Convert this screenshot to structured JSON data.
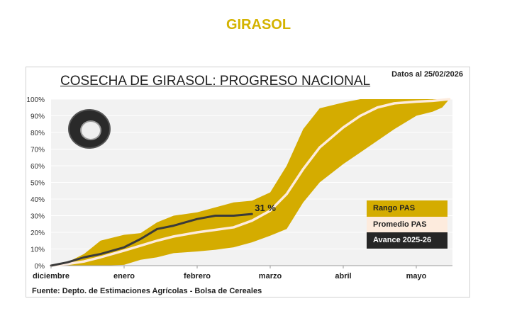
{
  "header": {
    "title": "GIRASOL"
  },
  "chart_data": {
    "type": "area",
    "title": "COSECHA DE GIRASOL: PROGRESO NACIONAL",
    "date_note": "Datos al 25/02/2026",
    "source": "Fuente: Depto. de Estimaciones Agrícolas - Bolsa de Cereales",
    "x_ticks": [
      "diciembre",
      "enero",
      "febrero",
      "marzo",
      "abril",
      "mayo"
    ],
    "y_ticks": [
      "0%",
      "10%",
      "20%",
      "30%",
      "40%",
      "50%",
      "60%",
      "70%",
      "80%",
      "90%",
      "100%"
    ],
    "ylim": [
      0,
      100
    ],
    "grid": true,
    "legend_placement": "bottom-right",
    "colors": {
      "range": "#D4AC00",
      "average": "#FDEBDD",
      "advance": "#3a3a3a",
      "plot_bg": "#F2F2F2"
    },
    "series": [
      {
        "name": "Rango PAS",
        "kind": "band",
        "upper": [
          [
            "2025-12-01",
            0
          ],
          [
            "2025-12-08",
            2
          ],
          [
            "2025-12-15",
            7
          ],
          [
            "2025-12-22",
            15
          ],
          [
            "2026-01-01",
            18.5
          ],
          [
            "2026-01-08",
            19.5
          ],
          [
            "2026-01-15",
            26
          ],
          [
            "2026-01-22",
            30
          ],
          [
            "2026-02-01",
            32
          ],
          [
            "2026-02-08",
            35
          ],
          [
            "2026-02-15",
            38
          ],
          [
            "2026-02-22",
            39
          ],
          [
            "2026-03-01",
            44
          ],
          [
            "2026-03-08",
            60
          ],
          [
            "2026-03-15",
            82
          ],
          [
            "2026-03-22",
            94.5
          ],
          [
            "2026-04-01",
            98
          ],
          [
            "2026-04-08",
            100
          ],
          [
            "2026-05-15",
            100
          ]
        ],
        "lower": [
          [
            "2025-12-01",
            0
          ],
          [
            "2025-12-22",
            0
          ],
          [
            "2026-01-01",
            0.5
          ],
          [
            "2026-01-08",
            3.5
          ],
          [
            "2026-01-15",
            5
          ],
          [
            "2026-01-22",
            7.5
          ],
          [
            "2026-02-01",
            8.5
          ],
          [
            "2026-02-08",
            9.5
          ],
          [
            "2026-02-15",
            11
          ],
          [
            "2026-02-22",
            14
          ],
          [
            "2026-03-01",
            18
          ],
          [
            "2026-03-08",
            22
          ],
          [
            "2026-03-15",
            38
          ],
          [
            "2026-03-22",
            50
          ],
          [
            "2026-04-01",
            61
          ],
          [
            "2026-04-08",
            68
          ],
          [
            "2026-04-15",
            75
          ],
          [
            "2026-04-22",
            82
          ],
          [
            "2026-05-01",
            90
          ],
          [
            "2026-05-08",
            92.5
          ],
          [
            "2026-05-12",
            95
          ],
          [
            "2026-05-15",
            100
          ]
        ]
      },
      {
        "name": "Promedio PAS",
        "kind": "line",
        "points": [
          [
            "2025-12-01",
            0
          ],
          [
            "2025-12-08",
            1
          ],
          [
            "2025-12-15",
            2.5
          ],
          [
            "2025-12-22",
            5
          ],
          [
            "2026-01-01",
            9
          ],
          [
            "2026-01-08",
            12
          ],
          [
            "2026-01-15",
            15
          ],
          [
            "2026-01-22",
            17.5
          ],
          [
            "2026-02-01",
            20
          ],
          [
            "2026-02-08",
            21.5
          ],
          [
            "2026-02-15",
            23
          ],
          [
            "2026-02-22",
            27
          ],
          [
            "2026-03-01",
            33
          ],
          [
            "2026-03-08",
            43
          ],
          [
            "2026-03-15",
            58
          ],
          [
            "2026-03-22",
            71
          ],
          [
            "2026-04-01",
            83
          ],
          [
            "2026-04-08",
            90
          ],
          [
            "2026-04-15",
            95
          ],
          [
            "2026-04-22",
            97.5
          ],
          [
            "2026-05-01",
            98.5
          ],
          [
            "2026-05-08",
            99
          ],
          [
            "2026-05-15",
            100
          ]
        ]
      },
      {
        "name": "Avance 2025-26",
        "kind": "line",
        "points": [
          [
            "2025-12-01",
            0
          ],
          [
            "2025-12-08",
            2
          ],
          [
            "2025-12-15",
            5
          ],
          [
            "2025-12-22",
            7
          ],
          [
            "2026-01-01",
            11
          ],
          [
            "2026-01-08",
            16
          ],
          [
            "2026-01-15",
            22
          ],
          [
            "2026-01-22",
            24
          ],
          [
            "2026-02-01",
            28
          ],
          [
            "2026-02-08",
            30
          ],
          [
            "2026-02-15",
            30
          ],
          [
            "2026-02-22",
            31
          ]
        ]
      }
    ],
    "annotation": "31 %"
  }
}
